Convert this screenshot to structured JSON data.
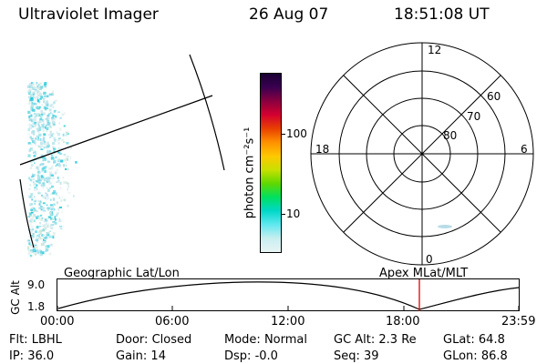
{
  "header": {
    "instrument": "Ultraviolet Imager",
    "date": "26 Aug 07",
    "time": "18:51:08 UT"
  },
  "colorbar": {
    "label": "photon cm⁻²s⁻¹",
    "ticks": [
      "100",
      "10"
    ],
    "colors": [
      "#1a0033",
      "#3a0050",
      "#8a0040",
      "#d40030",
      "#e84000",
      "#ff9000",
      "#ffc800",
      "#c8e000",
      "#60d800",
      "#00e060",
      "#00d8c8",
      "#60e8f0",
      "#c8eef0",
      "#e8f4f4"
    ]
  },
  "polar_plot": {
    "labels": {
      "top": "12",
      "bottom": "0",
      "left": "18",
      "right": "6",
      "lat60": "60",
      "lat70": "70",
      "lat80": "80"
    }
  },
  "timeline": {
    "left_title": "Geographic Lat/Lon",
    "right_title": "Apex MLat/MLT",
    "ylabel": "GC Alt",
    "yticks": [
      "9.0",
      "1.8"
    ],
    "xticks": [
      "00:00",
      "06:00",
      "12:00",
      "18:00",
      "23:59"
    ],
    "marker_color": "#e00000"
  },
  "info": [
    [
      {
        "k": "Flt:",
        "v": "LBHL"
      },
      {
        "k": "Door:",
        "v": "Closed"
      },
      {
        "k": "Mode:",
        "v": "Normal"
      },
      {
        "k": "GC Alt:",
        "v": "2.3 Re"
      },
      {
        "k": "GLat:",
        "v": "64.8"
      }
    ],
    [
      {
        "k": "IP:",
        "v": "36.0"
      },
      {
        "k": "Gain:",
        "v": "14"
      },
      {
        "k": "Dsp:",
        "v": "-0.0"
      },
      {
        "k": "Seq:",
        "v": "39"
      },
      {
        "k": "GLon:",
        "v": "86.8"
      }
    ]
  ]
}
